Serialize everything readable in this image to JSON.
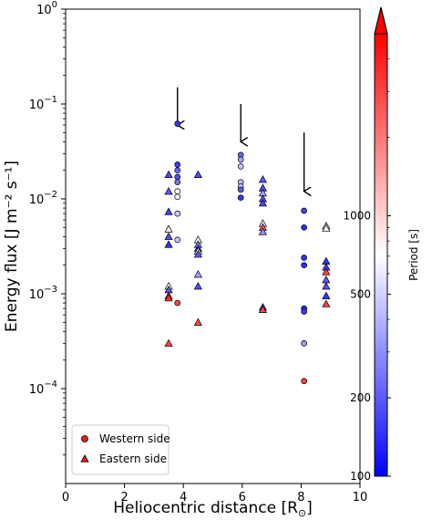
{
  "chart_data": {
    "type": "scatter",
    "xlabel_main": "Heliocentric distance [R",
    "xlabel_sub": "⊙",
    "xlabel_close": "]",
    "ylabel": "Energy flux [J m⁻² s⁻¹]",
    "xlim": [
      0,
      10
    ],
    "ylim": [
      1e-05,
      1
    ],
    "y_scale": "log",
    "x_ticks": [
      "0",
      "2",
      "4",
      "6",
      "8",
      "10"
    ],
    "y_ticks": [
      {
        "base": "10",
        "exp": "0"
      },
      {
        "base": "10",
        "exp": "−1"
      },
      {
        "base": "10",
        "exp": "−2"
      },
      {
        "base": "10",
        "exp": "−3"
      },
      {
        "base": "10",
        "exp": "−4"
      }
    ],
    "colorbar": {
      "label": "Period [s]",
      "scale": "log",
      "range": [
        100,
        5000
      ],
      "ticks": [
        "100",
        "200",
        "500",
        "1000"
      ],
      "colors": {
        "low": "#0000ff",
        "mid": "#ffffff",
        "high": "#ff0000"
      }
    },
    "legend": {
      "placement": "lower-left",
      "items": [
        {
          "label": "Western side",
          "marker": "circle"
        },
        {
          "label": "Eastern side",
          "marker": "triangle"
        }
      ]
    },
    "arrows": [
      {
        "x": 3.8,
        "y_from": 0.15,
        "y_to": 0.06
      },
      {
        "x": 5.95,
        "y_from": 0.1,
        "y_to": 0.04
      },
      {
        "x": 8.1,
        "y_from": 0.05,
        "y_to": 0.012
      }
    ],
    "series": [
      {
        "name": "Western side",
        "marker": "circle",
        "points": [
          {
            "x": 3.8,
            "y": 0.062,
            "period": 150
          },
          {
            "x": 3.8,
            "y": 0.023,
            "period": 160
          },
          {
            "x": 3.8,
            "y": 0.02,
            "period": 220
          },
          {
            "x": 3.8,
            "y": 0.017,
            "period": 180
          },
          {
            "x": 3.8,
            "y": 0.015,
            "period": 250
          },
          {
            "x": 3.8,
            "y": 0.012,
            "period": 700
          },
          {
            "x": 3.8,
            "y": 0.0105,
            "period": 800
          },
          {
            "x": 3.8,
            "y": 0.007,
            "period": 480
          },
          {
            "x": 3.8,
            "y": 0.0037,
            "period": 450
          },
          {
            "x": 3.8,
            "y": 0.0008,
            "period": 3000
          },
          {
            "x": 5.95,
            "y": 0.029,
            "period": 220
          },
          {
            "x": 5.95,
            "y": 0.026,
            "period": 350
          },
          {
            "x": 5.95,
            "y": 0.022,
            "period": 450
          },
          {
            "x": 5.95,
            "y": 0.015,
            "period": 420
          },
          {
            "x": 5.95,
            "y": 0.0135,
            "period": 460
          },
          {
            "x": 5.95,
            "y": 0.0125,
            "period": 200
          },
          {
            "x": 5.95,
            "y": 0.0103,
            "period": 150
          },
          {
            "x": 8.1,
            "y": 0.0075,
            "period": 170
          },
          {
            "x": 8.1,
            "y": 0.005,
            "period": 140
          },
          {
            "x": 8.1,
            "y": 0.0024,
            "period": 150
          },
          {
            "x": 8.1,
            "y": 0.002,
            "period": 140
          },
          {
            "x": 8.1,
            "y": 0.0007,
            "period": 140
          },
          {
            "x": 8.1,
            "y": 0.00065,
            "period": 150
          },
          {
            "x": 8.1,
            "y": 0.0003,
            "period": 320
          },
          {
            "x": 8.1,
            "y": 0.00012,
            "period": 3000
          }
        ]
      },
      {
        "name": "Eastern side",
        "marker": "triangle",
        "points": [
          {
            "x": 3.5,
            "y": 0.018,
            "period": 180
          },
          {
            "x": 3.5,
            "y": 0.012,
            "period": 200
          },
          {
            "x": 3.5,
            "y": 0.0073,
            "period": 170
          },
          {
            "x": 3.5,
            "y": 0.0048,
            "period": 600
          },
          {
            "x": 3.5,
            "y": 0.004,
            "period": 180
          },
          {
            "x": 3.5,
            "y": 0.0033,
            "period": 150
          },
          {
            "x": 3.5,
            "y": 0.0012,
            "period": 700
          },
          {
            "x": 3.5,
            "y": 0.0011,
            "period": 200
          },
          {
            "x": 3.5,
            "y": 0.00095,
            "period": 3000
          },
          {
            "x": 3.5,
            "y": 0.0009,
            "period": 3500
          },
          {
            "x": 3.5,
            "y": 0.0003,
            "period": 3000
          },
          {
            "x": 4.5,
            "y": 0.018,
            "period": 180
          },
          {
            "x": 4.5,
            "y": 0.0037,
            "period": 700
          },
          {
            "x": 4.5,
            "y": 0.0033,
            "period": 300
          },
          {
            "x": 4.5,
            "y": 0.003,
            "period": 160
          },
          {
            "x": 4.5,
            "y": 0.0028,
            "period": 800
          },
          {
            "x": 4.5,
            "y": 0.0026,
            "period": 200
          },
          {
            "x": 4.5,
            "y": 0.0016,
            "period": 350
          },
          {
            "x": 4.5,
            "y": 0.0012,
            "period": 180
          },
          {
            "x": 4.5,
            "y": 0.0005,
            "period": 3000
          },
          {
            "x": 6.7,
            "y": 0.016,
            "period": 200
          },
          {
            "x": 6.7,
            "y": 0.013,
            "period": 180
          },
          {
            "x": 6.7,
            "y": 0.0115,
            "period": 350
          },
          {
            "x": 6.7,
            "y": 0.01,
            "period": 200
          },
          {
            "x": 6.7,
            "y": 0.009,
            "period": 170
          },
          {
            "x": 6.7,
            "y": 0.0055,
            "period": 900
          },
          {
            "x": 6.7,
            "y": 0.005,
            "period": 2500
          },
          {
            "x": 6.7,
            "y": 0.0045,
            "period": 300
          },
          {
            "x": 6.7,
            "y": 0.00072,
            "period": 160
          },
          {
            "x": 6.7,
            "y": 0.00068,
            "period": 3000
          },
          {
            "x": 8.85,
            "y": 0.0052,
            "period": 600
          },
          {
            "x": 8.85,
            "y": 0.0049,
            "period": 800
          },
          {
            "x": 8.85,
            "y": 0.0022,
            "period": 150
          },
          {
            "x": 8.85,
            "y": 0.0019,
            "period": 160
          },
          {
            "x": 8.85,
            "y": 0.0017,
            "period": 3000
          },
          {
            "x": 8.85,
            "y": 0.0014,
            "period": 200
          },
          {
            "x": 8.85,
            "y": 0.0012,
            "period": 180
          },
          {
            "x": 8.85,
            "y": 0.00095,
            "period": 150
          },
          {
            "x": 8.85,
            "y": 0.00078,
            "period": 3000
          }
        ]
      }
    ]
  }
}
